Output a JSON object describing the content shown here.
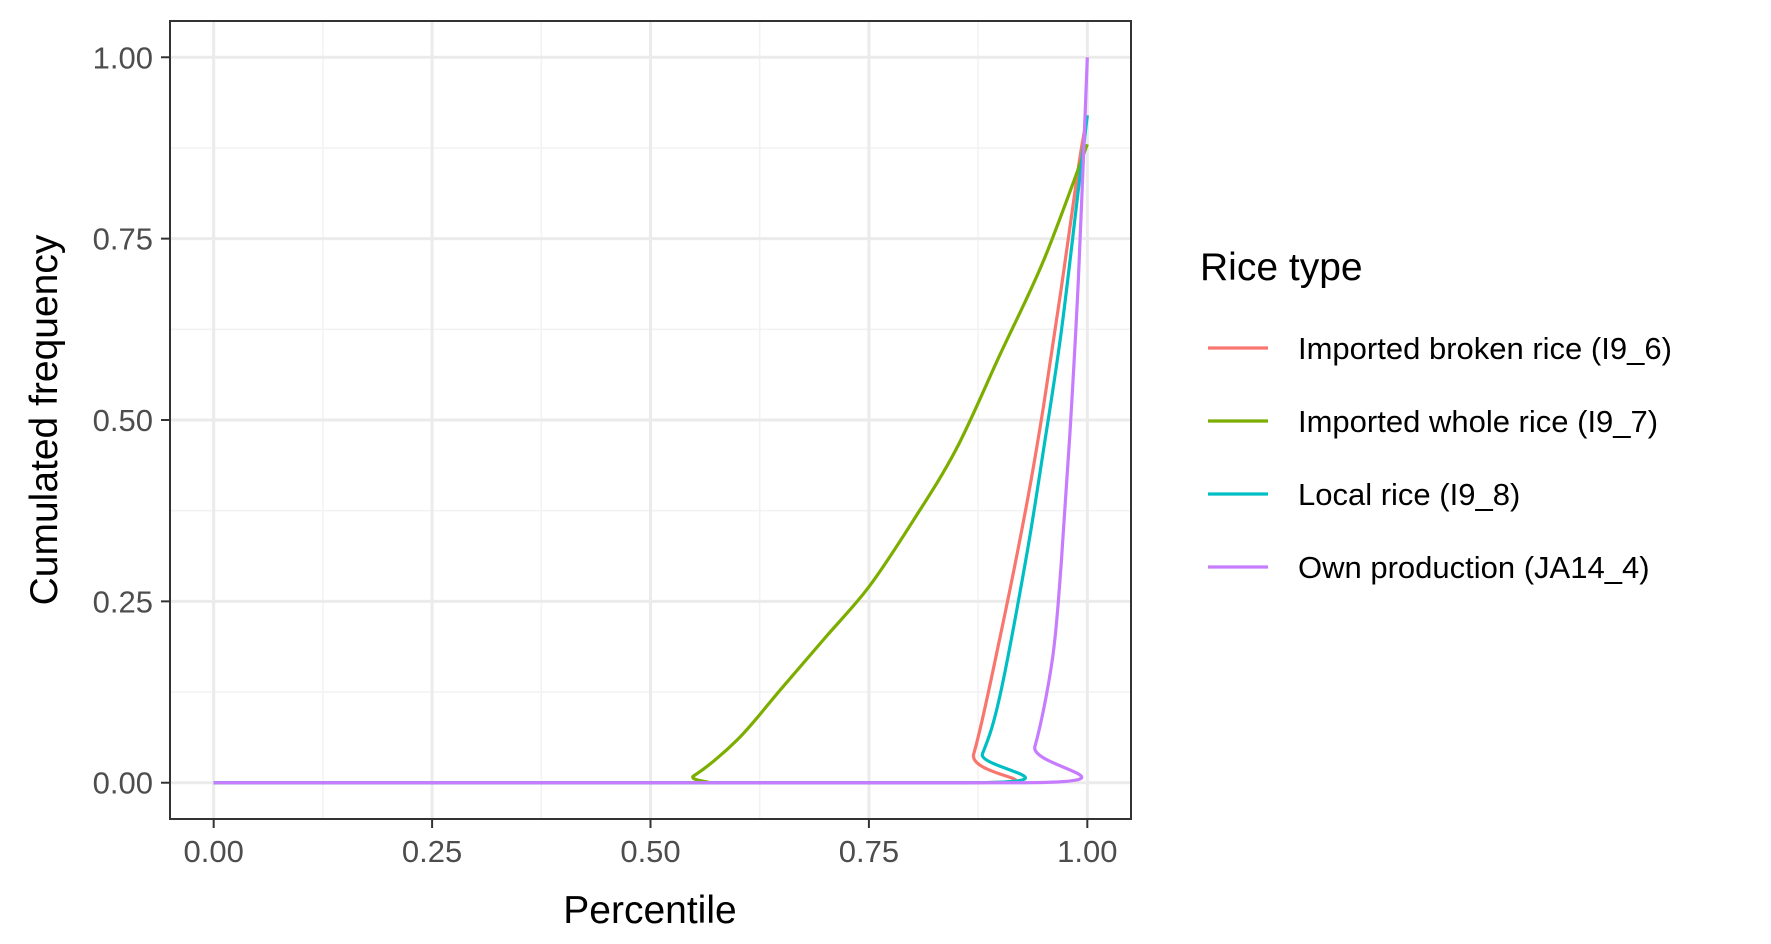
{
  "chart_data": {
    "type": "line",
    "xlabel": "Percentile",
    "ylabel": "Cumulated frequency",
    "xlim": [
      -0.05,
      1.05
    ],
    "ylim": [
      -0.05,
      1.05
    ],
    "x_ticks": [
      "0.00",
      "0.25",
      "0.50",
      "0.75",
      "1.00"
    ],
    "y_ticks": [
      "0.00",
      "0.25",
      "0.50",
      "0.75",
      "1.00"
    ],
    "grid": true,
    "legend": {
      "title": "Rice type",
      "position": "right"
    },
    "series": [
      {
        "name": "Imported broken rice (I9_6)",
        "color": "#F8766D",
        "x": [
          0,
          0.85,
          0.87,
          0.9,
          0.93,
          0.95,
          0.97,
          0.99,
          1.0
        ],
        "y": [
          0,
          0,
          0.04,
          0.2,
          0.38,
          0.52,
          0.68,
          0.85,
          0.92
        ]
      },
      {
        "name": "Imported whole rice (I9_7)",
        "color": "#7CAE00",
        "x": [
          0,
          0.52,
          0.55,
          0.6,
          0.65,
          0.7,
          0.75,
          0.8,
          0.85,
          0.9,
          0.95,
          1.0
        ],
        "y": [
          0,
          0,
          0.01,
          0.06,
          0.13,
          0.2,
          0.27,
          0.36,
          0.46,
          0.59,
          0.72,
          0.88
        ]
      },
      {
        "name": "Local rice (I9_8)",
        "color": "#00BFC4",
        "x": [
          0,
          0.86,
          0.88,
          0.9,
          0.93,
          0.95,
          0.97,
          0.99,
          1.0
        ],
        "y": [
          0,
          0,
          0.04,
          0.12,
          0.31,
          0.46,
          0.62,
          0.82,
          0.92
        ]
      },
      {
        "name": "Own production (JA14_4)",
        "color": "#C77CFF",
        "x": [
          0,
          0.92,
          0.94,
          0.96,
          0.97,
          0.98,
          0.99,
          1.0
        ],
        "y": [
          0,
          0,
          0.05,
          0.17,
          0.3,
          0.48,
          0.7,
          1.0
        ]
      }
    ]
  }
}
